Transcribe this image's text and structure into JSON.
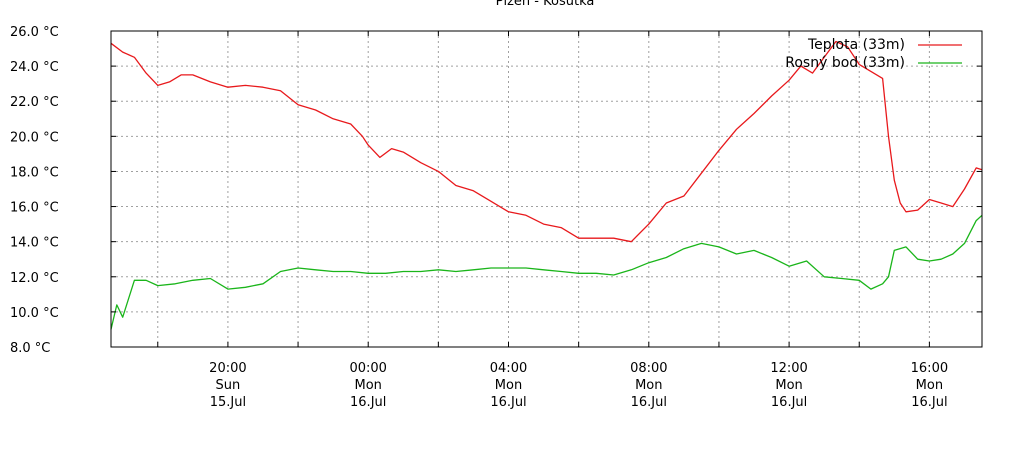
{
  "chart_data": {
    "type": "line",
    "title": "Plzeň - Košutka",
    "xlabel": "",
    "ylabel": "",
    "ylim": [
      8,
      26
    ],
    "xlim": [
      "2018-07-15 16:40",
      "2018-07-16 17:30"
    ],
    "grid": true,
    "legend_position": "top-right",
    "y_ticks": [
      {
        "value": 8,
        "label": "8.0 °C"
      },
      {
        "value": 10,
        "label": "10.0 °C"
      },
      {
        "value": 12,
        "label": "12.0 °C"
      },
      {
        "value": 14,
        "label": "14.0 °C"
      },
      {
        "value": 16,
        "label": "16.0 °C"
      },
      {
        "value": 18,
        "label": "18.0 °C"
      },
      {
        "value": 20,
        "label": "20.0 °C"
      },
      {
        "value": 22,
        "label": "22.0 °C"
      },
      {
        "value": 24,
        "label": "24.0 °C"
      },
      {
        "value": 26,
        "label": "26.0 °C"
      }
    ],
    "x_ticks": [
      {
        "value": "2018-07-15 20:00",
        "lines": [
          "20:00",
          "Sun",
          "15.Jul"
        ]
      },
      {
        "value": "2018-07-16 00:00",
        "lines": [
          "00:00",
          "Mon",
          "16.Jul"
        ]
      },
      {
        "value": "2018-07-16 04:00",
        "lines": [
          "04:00",
          "Mon",
          "16.Jul"
        ]
      },
      {
        "value": "2018-07-16 08:00",
        "lines": [
          "08:00",
          "Mon",
          "16.Jul"
        ]
      },
      {
        "value": "2018-07-16 12:00",
        "lines": [
          "12:00",
          "Mon",
          "16.Jul"
        ]
      },
      {
        "value": "2018-07-16 16:00",
        "lines": [
          "16:00",
          "Mon",
          "16.Jul"
        ]
      }
    ],
    "series": [
      {
        "name": "Teplota (33m)",
        "color": "#e8191c",
        "x": [
          "2018-07-15 16:40",
          "2018-07-15 17:00",
          "2018-07-15 17:20",
          "2018-07-15 17:40",
          "2018-07-15 18:00",
          "2018-07-15 18:20",
          "2018-07-15 18:40",
          "2018-07-15 19:00",
          "2018-07-15 19:30",
          "2018-07-15 20:00",
          "2018-07-15 20:30",
          "2018-07-15 21:00",
          "2018-07-15 21:30",
          "2018-07-15 22:00",
          "2018-07-15 22:30",
          "2018-07-15 23:00",
          "2018-07-15 23:30",
          "2018-07-15 23:50",
          "2018-07-16 00:00",
          "2018-07-16 00:20",
          "2018-07-16 00:40",
          "2018-07-16 01:00",
          "2018-07-16 01:30",
          "2018-07-16 02:00",
          "2018-07-16 02:30",
          "2018-07-16 03:00",
          "2018-07-16 03:30",
          "2018-07-16 04:00",
          "2018-07-16 04:30",
          "2018-07-16 05:00",
          "2018-07-16 05:30",
          "2018-07-16 06:00",
          "2018-07-16 06:30",
          "2018-07-16 07:00",
          "2018-07-16 07:30",
          "2018-07-16 08:00",
          "2018-07-16 08:30",
          "2018-07-16 09:00",
          "2018-07-16 09:30",
          "2018-07-16 10:00",
          "2018-07-16 10:30",
          "2018-07-16 11:00",
          "2018-07-16 11:30",
          "2018-07-16 12:00",
          "2018-07-16 12:20",
          "2018-07-16 12:40",
          "2018-07-16 13:00",
          "2018-07-16 13:20",
          "2018-07-16 13:40",
          "2018-07-16 14:00",
          "2018-07-16 14:20",
          "2018-07-16 14:40",
          "2018-07-16 14:50",
          "2018-07-16 15:00",
          "2018-07-16 15:10",
          "2018-07-16 15:20",
          "2018-07-16 15:40",
          "2018-07-16 16:00",
          "2018-07-16 16:20",
          "2018-07-16 16:40",
          "2018-07-16 17:00",
          "2018-07-16 17:20",
          "2018-07-16 17:30"
        ],
        "values": [
          25.3,
          24.8,
          24.5,
          23.6,
          22.9,
          23.1,
          23.5,
          23.5,
          23.1,
          22.8,
          22.9,
          22.8,
          22.6,
          21.8,
          21.5,
          21.0,
          20.7,
          20.0,
          19.5,
          18.8,
          19.3,
          19.1,
          18.5,
          18.0,
          17.2,
          16.9,
          16.3,
          15.7,
          15.5,
          15.0,
          14.8,
          14.2,
          14.2,
          14.2,
          14.0,
          15.0,
          16.2,
          16.6,
          17.9,
          19.2,
          20.4,
          21.3,
          22.3,
          23.2,
          24.0,
          23.6,
          24.5,
          25.4,
          25.1,
          24.1,
          23.7,
          23.3,
          20.0,
          17.5,
          16.2,
          15.7,
          15.8,
          16.4,
          16.2,
          16.0,
          17.0,
          18.2,
          18.1
        ]
      },
      {
        "name": "Rosný bod (33m)",
        "color": "#1ab51a",
        "x": [
          "2018-07-15 16:40",
          "2018-07-15 16:50",
          "2018-07-15 17:00",
          "2018-07-15 17:20",
          "2018-07-15 17:40",
          "2018-07-15 18:00",
          "2018-07-15 18:30",
          "2018-07-15 19:00",
          "2018-07-15 19:30",
          "2018-07-15 20:00",
          "2018-07-15 20:30",
          "2018-07-15 21:00",
          "2018-07-15 21:30",
          "2018-07-15 22:00",
          "2018-07-15 22:30",
          "2018-07-15 23:00",
          "2018-07-15 23:30",
          "2018-07-16 00:00",
          "2018-07-16 00:30",
          "2018-07-16 01:00",
          "2018-07-16 01:30",
          "2018-07-16 02:00",
          "2018-07-16 02:30",
          "2018-07-16 03:00",
          "2018-07-16 03:30",
          "2018-07-16 04:00",
          "2018-07-16 04:30",
          "2018-07-16 05:00",
          "2018-07-16 05:30",
          "2018-07-16 06:00",
          "2018-07-16 06:30",
          "2018-07-16 07:00",
          "2018-07-16 07:30",
          "2018-07-16 08:00",
          "2018-07-16 08:30",
          "2018-07-16 09:00",
          "2018-07-16 09:30",
          "2018-07-16 10:00",
          "2018-07-16 10:30",
          "2018-07-16 11:00",
          "2018-07-16 11:30",
          "2018-07-16 12:00",
          "2018-07-16 12:30",
          "2018-07-16 13:00",
          "2018-07-16 13:30",
          "2018-07-16 14:00",
          "2018-07-16 14:20",
          "2018-07-16 14:40",
          "2018-07-16 14:50",
          "2018-07-16 15:00",
          "2018-07-16 15:20",
          "2018-07-16 15:40",
          "2018-07-16 16:00",
          "2018-07-16 16:20",
          "2018-07-16 16:40",
          "2018-07-16 17:00",
          "2018-07-16 17:20",
          "2018-07-16 17:30"
        ],
        "values": [
          9.0,
          10.4,
          9.7,
          11.8,
          11.8,
          11.5,
          11.6,
          11.8,
          11.9,
          11.3,
          11.4,
          11.6,
          12.3,
          12.5,
          12.4,
          12.3,
          12.3,
          12.2,
          12.2,
          12.3,
          12.3,
          12.4,
          12.3,
          12.4,
          12.5,
          12.5,
          12.5,
          12.4,
          12.3,
          12.2,
          12.2,
          12.1,
          12.4,
          12.8,
          13.1,
          13.6,
          13.9,
          13.7,
          13.3,
          13.5,
          13.1,
          12.6,
          12.9,
          12.0,
          11.9,
          11.8,
          11.3,
          11.6,
          12.0,
          13.5,
          13.7,
          13.0,
          12.9,
          13.0,
          13.3,
          13.9,
          15.2,
          15.5
        ]
      }
    ]
  }
}
